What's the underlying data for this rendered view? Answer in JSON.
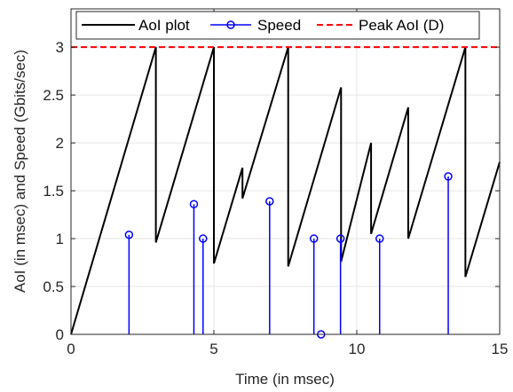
{
  "chart_data": {
    "type": "line",
    "title": "",
    "xlabel": "Time (in msec)",
    "ylabel": "AoI (in msec) and Speed (Gbits/sec)",
    "xlim": [
      0,
      15
    ],
    "ylim": [
      0,
      3.4
    ],
    "xticks": [
      0,
      5,
      10,
      15
    ],
    "yticks": [
      0,
      0.5,
      1,
      1.5,
      2,
      2.5,
      3
    ],
    "xtick_labels": [
      "0",
      "5",
      "10",
      "15"
    ],
    "ytick_labels": [
      "0",
      "0.5",
      "1",
      "1.5",
      "2",
      "2.5",
      "3"
    ],
    "grid": true,
    "legend_position": "top",
    "series": [
      {
        "name": "AoI plot",
        "style": "solid",
        "color": "#000000",
        "points": [
          [
            0,
            0
          ],
          [
            2.97,
            3.0
          ],
          [
            2.97,
            0.96
          ],
          [
            5.0,
            3.0
          ],
          [
            5.0,
            0.74
          ],
          [
            6.0,
            1.74
          ],
          [
            6.0,
            1.42
          ],
          [
            7.6,
            3.0
          ],
          [
            7.6,
            0.71
          ],
          [
            9.45,
            2.58
          ],
          [
            9.45,
            0.76
          ],
          [
            10.5,
            2.0
          ],
          [
            10.5,
            1.05
          ],
          [
            11.8,
            2.37
          ],
          [
            11.8,
            1.0
          ],
          [
            13.8,
            3.0
          ],
          [
            13.8,
            0.6
          ],
          [
            15.0,
            1.8
          ]
        ]
      },
      {
        "name": "Speed",
        "style": "stem",
        "color": "#0000ff",
        "x": [
          2.03,
          4.3,
          4.62,
          6.95,
          8.5,
          8.75,
          9.43,
          10.8,
          13.2
        ],
        "y": [
          1.04,
          1.36,
          1.0,
          1.39,
          1.0,
          0.0,
          1.0,
          1.0,
          1.65
        ]
      },
      {
        "name": "Peak AoI (D)",
        "style": "dashed",
        "color": "#ff0000",
        "y_constant": 3.0
      }
    ]
  }
}
